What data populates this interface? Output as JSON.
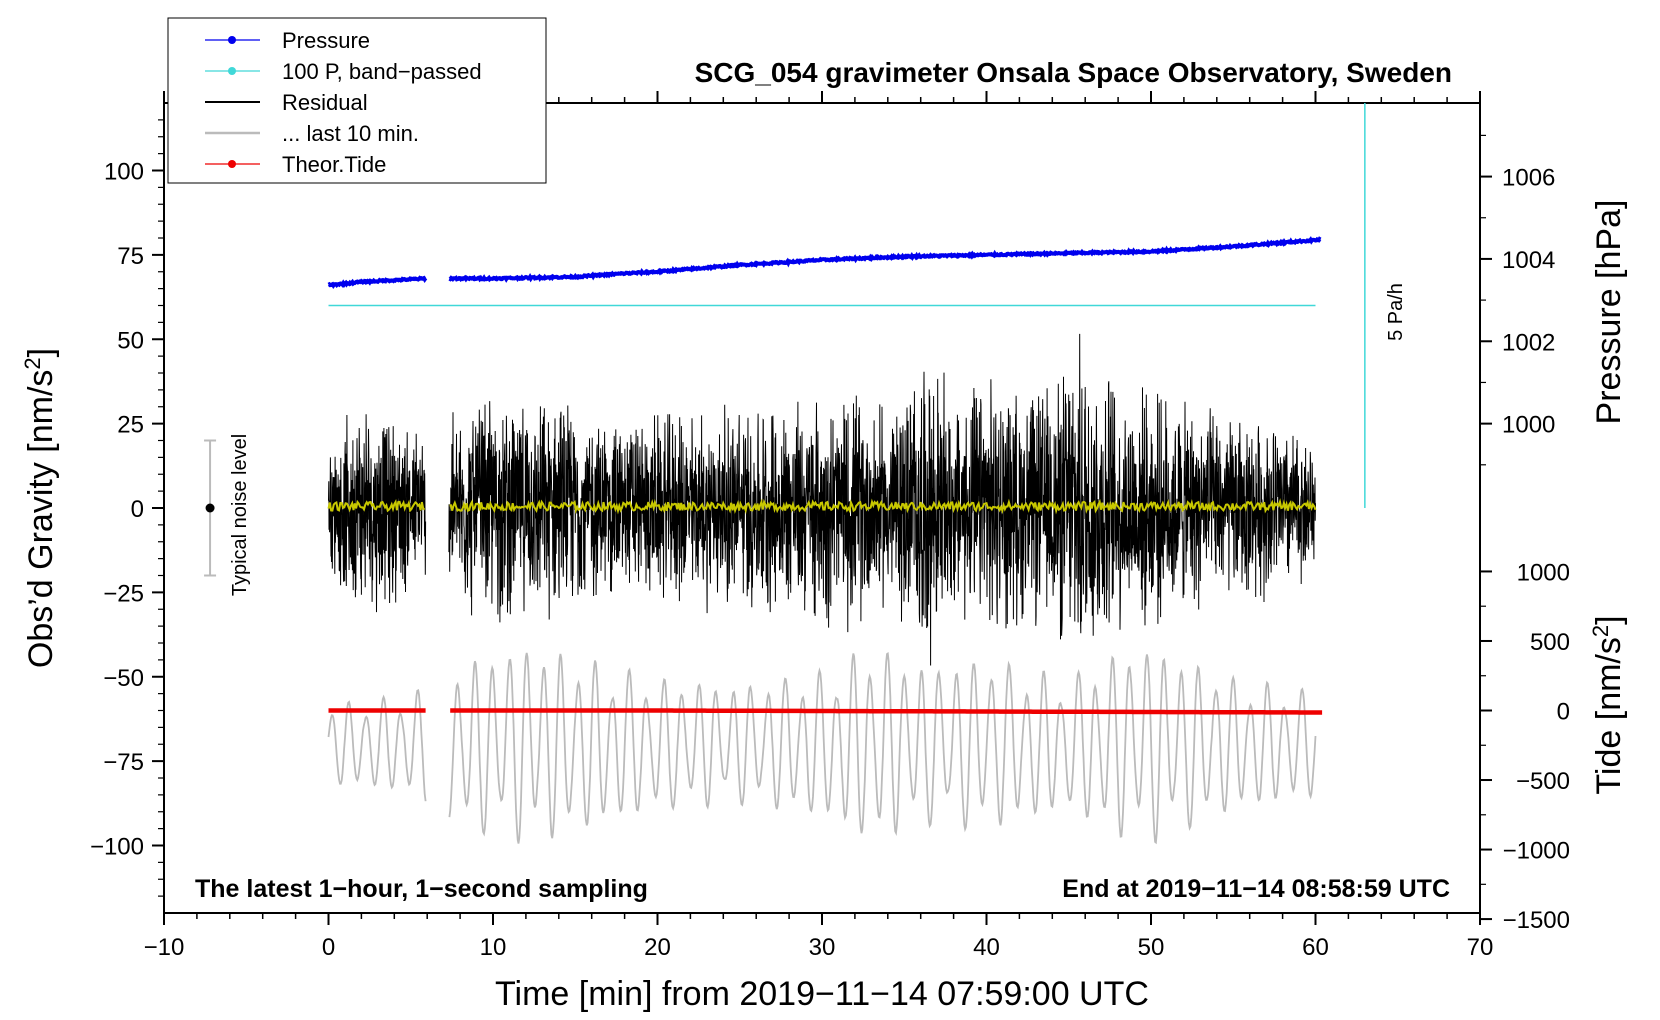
{
  "chart_data": {
    "type": "line",
    "title": "SCG_054 gravimeter Onsala Space Observatory, Sweden",
    "xlabel": "Time [min] from 2019−11−14 07:59:00 UTC",
    "ylabel_left": "Obs’d Gravity [nm/s",
    "ylabel_left_sup": "2",
    "ylabel_left_end": "]",
    "ylabel_right_pressure": "Pressure [hPa]",
    "ylabel_right_tide": "Tide [nm/s",
    "ylabel_right_tide_sup": "2",
    "ylabel_right_tide_end": "]",
    "xlim": [
      -10,
      70
    ],
    "ylim": [
      -120,
      120
    ],
    "x_ticks": [
      "−10",
      "0",
      "10",
      "20",
      "30",
      "40",
      "50",
      "60",
      "70"
    ],
    "x_tick_values": [
      -10,
      0,
      10,
      20,
      30,
      40,
      50,
      60,
      70
    ],
    "y_ticks": [
      "100",
      "75",
      "50",
      "25",
      "0",
      "−25",
      "−50",
      "−75",
      "−100"
    ],
    "y_tick_values": [
      100,
      75,
      50,
      25,
      0,
      -25,
      -50,
      -75,
      -100
    ],
    "pressure_axis": {
      "ticks": [
        "1006",
        "1004",
        "1002",
        "1000"
      ],
      "tick_values": [
        1006,
        1004,
        1002,
        1000
      ],
      "gravity_at_1000": 25,
      "gravity_per_hpa": 12.2
    },
    "tide_axis": {
      "ticks": [
        "1000",
        "500",
        "0",
        "−500",
        "−1000",
        "−1500"
      ],
      "tick_values": [
        1000,
        500,
        0,
        -500,
        -1000,
        -1500
      ],
      "gravity_at_0": -60,
      "gravity_per_unit": 0.0412
    },
    "footnote_left": "The latest 1−hour, 1−second sampling",
    "footnote_right": "End at 2019−11−14 08:58:59 UTC",
    "noise_level_label": "Typical noise level",
    "noise_level_range": [
      -20,
      20
    ],
    "rate_label": "5 Pa/h",
    "rate_bar": {
      "x": 63,
      "y_from": 0,
      "y_to": 120
    },
    "data_gap": [
      5.9,
      7.3
    ],
    "legend": [
      {
        "label": "Pressure",
        "color": "#0000ee",
        "marker": true
      },
      {
        "label": "100 P, band−passed",
        "color": "#40d8d8",
        "marker": true
      },
      {
        "label": "Residual",
        "color": "#000000",
        "marker": false
      },
      {
        "label": "... last 10 min.",
        "color": "#bbbbbb",
        "marker": false
      },
      {
        "label": "Theor.Tide",
        "color": "#ee0000",
        "marker": true
      }
    ],
    "series": [
      {
        "name": "Pressure",
        "color": "#0000ee",
        "x": [
          0,
          2,
          4,
          5.9,
          7.3,
          10,
          15,
          18,
          20,
          25,
          30,
          35,
          40,
          45,
          50,
          55,
          60.3
        ],
        "y": [
          66,
          67,
          67.5,
          68,
          68,
          68,
          68.5,
          69.5,
          70,
          72,
          73.5,
          74.5,
          75,
          75.5,
          76,
          77.5,
          79.5
        ]
      },
      {
        "name": "100 P, band−passed",
        "color": "#40d8d8",
        "x": [
          0,
          60
        ],
        "y": [
          60,
          60
        ]
      },
      {
        "name": "Residual",
        "color": "#000000",
        "x_range": [
          0,
          60
        ],
        "amplitude_envelope_x": [
          0,
          2,
          4,
          5.9,
          7.3,
          10,
          12,
          14,
          16,
          20,
          24,
          28,
          32,
          34,
          36.5,
          38,
          40,
          42,
          44,
          45,
          46,
          47,
          48,
          50,
          52,
          55,
          58,
          60
        ],
        "amplitude_envelope_y": [
          20,
          35,
          30,
          25,
          30,
          38,
          33,
          36,
          30,
          30,
          33,
          35,
          38,
          32,
          50,
          35,
          42,
          38,
          40,
          50,
          55,
          48,
          40,
          38,
          34,
          30,
          28,
          22
        ]
      },
      {
        "name": "residual smoothed",
        "color": "#c8c800",
        "x_range": [
          0,
          60
        ],
        "level": 0.5
      },
      {
        "name": "... last 10 min.",
        "color": "#bbbbbb",
        "x_range": [
          0,
          60
        ],
        "center": -70,
        "amplitude_envelope_x": [
          0,
          5,
          8,
          12,
          14,
          20,
          25,
          30,
          33,
          36,
          40,
          45,
          48,
          50,
          55,
          60
        ],
        "amplitude_envelope_y": [
          12,
          15,
          25,
          30,
          28,
          20,
          18,
          22,
          30,
          24,
          26,
          20,
          28,
          30,
          20,
          16
        ]
      },
      {
        "name": "Theor.Tide",
        "color": "#ee0000",
        "x": [
          0,
          5.9,
          7.3,
          20,
          40,
          60.5
        ],
        "y": [
          -60,
          -60,
          -60,
          -60,
          -60.3,
          -60.6
        ]
      }
    ]
  }
}
